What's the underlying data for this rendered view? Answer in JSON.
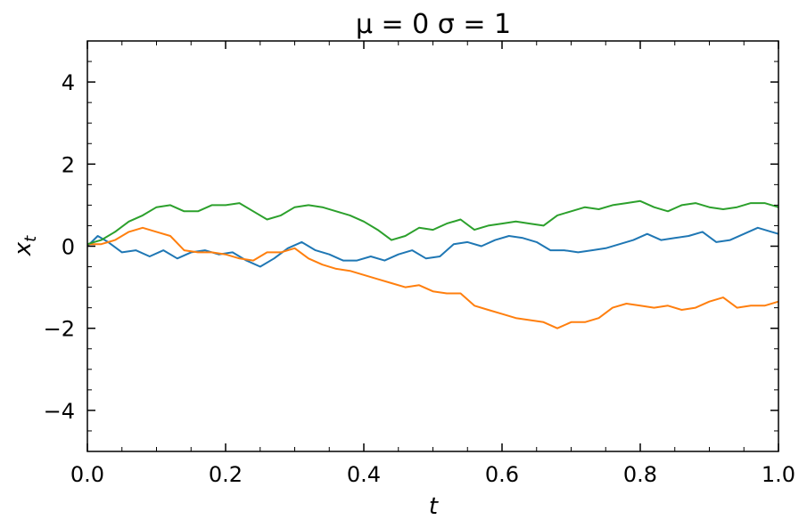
{
  "chart_data": {
    "type": "line",
    "title": "μ =  0 σ =  1",
    "xlabel": "t",
    "ylabel": "x",
    "ylabel_subscript": "t",
    "xlim": [
      0.0,
      1.0
    ],
    "ylim": [
      -5,
      5
    ],
    "xticks": [
      0.0,
      0.2,
      0.4,
      0.6,
      0.8,
      1.0
    ],
    "xtick_labels": [
      "0.0",
      "0.2",
      "0.4",
      "0.6",
      "0.8",
      "1.0"
    ],
    "yticks": [
      -4,
      -2,
      0,
      2,
      4
    ],
    "ytick_labels": [
      "−4",
      "−2",
      "0",
      "2",
      "4"
    ],
    "grid": false,
    "series": [
      {
        "color": "#1f77b4",
        "x": [
          0.0,
          0.015,
          0.03,
          0.05,
          0.07,
          0.09,
          0.11,
          0.13,
          0.15,
          0.17,
          0.19,
          0.21,
          0.23,
          0.25,
          0.27,
          0.29,
          0.31,
          0.33,
          0.35,
          0.37,
          0.39,
          0.41,
          0.43,
          0.45,
          0.47,
          0.49,
          0.51,
          0.53,
          0.55,
          0.57,
          0.59,
          0.61,
          0.63,
          0.65,
          0.67,
          0.69,
          0.71,
          0.73,
          0.75,
          0.77,
          0.79,
          0.81,
          0.83,
          0.85,
          0.87,
          0.89,
          0.91,
          0.93,
          0.95,
          0.97,
          0.99,
          1.0
        ],
        "y": [
          0.0,
          0.25,
          0.1,
          -0.15,
          -0.1,
          -0.25,
          -0.1,
          -0.3,
          -0.15,
          -0.1,
          -0.2,
          -0.15,
          -0.35,
          -0.5,
          -0.3,
          -0.05,
          0.1,
          -0.1,
          -0.2,
          -0.35,
          -0.35,
          -0.25,
          -0.35,
          -0.2,
          -0.1,
          -0.3,
          -0.25,
          0.05,
          0.1,
          0.0,
          0.15,
          0.25,
          0.2,
          0.1,
          -0.1,
          -0.1,
          -0.15,
          -0.1,
          -0.05,
          0.05,
          0.15,
          0.3,
          0.15,
          0.2,
          0.25,
          0.35,
          0.1,
          0.15,
          0.3,
          0.45,
          0.35,
          0.3
        ]
      },
      {
        "color": "#ff7f0e",
        "x": [
          0.0,
          0.02,
          0.04,
          0.06,
          0.08,
          0.1,
          0.12,
          0.14,
          0.16,
          0.18,
          0.2,
          0.22,
          0.24,
          0.26,
          0.28,
          0.3,
          0.32,
          0.34,
          0.36,
          0.38,
          0.4,
          0.42,
          0.44,
          0.46,
          0.48,
          0.5,
          0.52,
          0.54,
          0.56,
          0.58,
          0.6,
          0.62,
          0.64,
          0.66,
          0.68,
          0.7,
          0.72,
          0.74,
          0.76,
          0.78,
          0.8,
          0.82,
          0.84,
          0.86,
          0.88,
          0.9,
          0.92,
          0.94,
          0.96,
          0.98,
          1.0
        ],
        "y": [
          0.05,
          0.05,
          0.15,
          0.35,
          0.45,
          0.35,
          0.25,
          -0.1,
          -0.15,
          -0.15,
          -0.2,
          -0.3,
          -0.35,
          -0.15,
          -0.15,
          -0.05,
          -0.3,
          -0.45,
          -0.55,
          -0.6,
          -0.7,
          -0.8,
          -0.9,
          -1.0,
          -0.95,
          -1.1,
          -1.15,
          -1.15,
          -1.45,
          -1.55,
          -1.65,
          -1.75,
          -1.8,
          -1.85,
          -2.0,
          -1.85,
          -1.85,
          -1.75,
          -1.5,
          -1.4,
          -1.45,
          -1.5,
          -1.45,
          -1.55,
          -1.5,
          -1.35,
          -1.25,
          -1.5,
          -1.45,
          -1.45,
          -1.35
        ]
      },
      {
        "color": "#2ca02c",
        "x": [
          0.0,
          0.02,
          0.04,
          0.06,
          0.08,
          0.1,
          0.12,
          0.14,
          0.16,
          0.18,
          0.2,
          0.22,
          0.24,
          0.26,
          0.28,
          0.3,
          0.32,
          0.34,
          0.36,
          0.38,
          0.4,
          0.42,
          0.44,
          0.46,
          0.48,
          0.5,
          0.52,
          0.54,
          0.56,
          0.58,
          0.6,
          0.62,
          0.64,
          0.66,
          0.68,
          0.7,
          0.72,
          0.74,
          0.76,
          0.78,
          0.8,
          0.82,
          0.84,
          0.86,
          0.88,
          0.9,
          0.92,
          0.94,
          0.96,
          0.98,
          1.0
        ],
        "y": [
          0.05,
          0.15,
          0.35,
          0.6,
          0.75,
          0.95,
          1.0,
          0.85,
          0.85,
          1.0,
          1.0,
          1.05,
          0.85,
          0.65,
          0.75,
          0.95,
          1.0,
          0.95,
          0.85,
          0.75,
          0.6,
          0.4,
          0.15,
          0.25,
          0.45,
          0.4,
          0.55,
          0.65,
          0.4,
          0.5,
          0.55,
          0.6,
          0.55,
          0.5,
          0.75,
          0.85,
          0.95,
          0.9,
          1.0,
          1.05,
          1.1,
          0.95,
          0.85,
          1.0,
          1.05,
          0.95,
          0.9,
          0.95,
          1.05,
          1.05,
          0.95
        ]
      }
    ]
  }
}
